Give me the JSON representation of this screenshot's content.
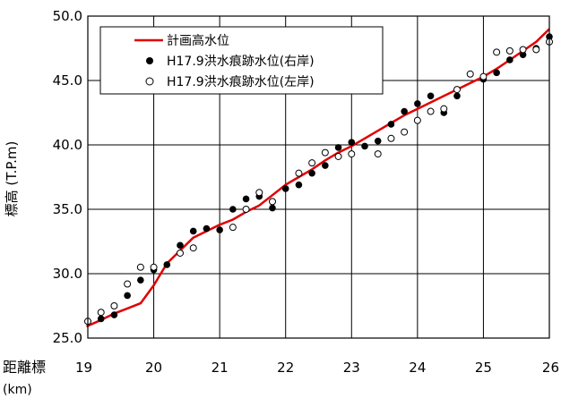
{
  "chart_data": {
    "type": "line",
    "xlabel": "距離標",
    "xunit": "(km)",
    "ylabel": "標高 (T.P.m)",
    "xlim": [
      19,
      26
    ],
    "ylim": [
      25.0,
      50.0
    ],
    "xticks": [
      "19",
      "20",
      "21",
      "22",
      "23",
      "24",
      "25",
      "26"
    ],
    "yticks": [
      "25.0",
      "30.0",
      "35.0",
      "40.0",
      "45.0",
      "50.0"
    ],
    "grid": true,
    "legend_position": "top-left",
    "colors": {
      "plan": "#e00000",
      "right": "#000000",
      "left": "#000000"
    },
    "series": [
      {
        "name": "計画高水位",
        "style": "line",
        "x": [
          18.98,
          19.2,
          19.4,
          19.6,
          19.8,
          20.0,
          20.2,
          20.4,
          20.6,
          20.8,
          21.0,
          21.2,
          21.4,
          21.6,
          21.8,
          22.0,
          22.2,
          22.4,
          22.6,
          22.8,
          23.0,
          23.2,
          23.4,
          23.6,
          23.8,
          24.0,
          24.2,
          24.4,
          24.6,
          24.8,
          25.0,
          25.2,
          25.4,
          25.6,
          25.8,
          26.0
        ],
        "y": [
          25.9,
          26.4,
          26.9,
          27.3,
          27.7,
          29.1,
          30.8,
          31.8,
          32.8,
          33.3,
          33.8,
          34.2,
          34.8,
          35.3,
          36.1,
          36.9,
          37.5,
          38.1,
          38.8,
          39.4,
          39.9,
          40.5,
          41.1,
          41.7,
          42.3,
          42.8,
          43.3,
          43.8,
          44.3,
          44.8,
          45.3,
          45.9,
          46.6,
          47.3,
          48.0,
          49.0
        ]
      },
      {
        "name": "H17.9洪水痕跡水位(右岸)",
        "style": "filled-marker",
        "x": [
          19.2,
          19.4,
          19.6,
          19.8,
          20.0,
          20.2,
          20.4,
          20.6,
          20.8,
          21.0,
          21.2,
          21.4,
          21.6,
          21.8,
          22.0,
          22.2,
          22.4,
          22.6,
          22.8,
          23.0,
          23.2,
          23.4,
          23.6,
          23.8,
          24.0,
          24.2,
          24.4,
          24.6,
          25.0,
          25.2,
          25.4,
          25.6,
          25.8,
          26.0
        ],
        "y": [
          26.5,
          26.8,
          28.3,
          29.5,
          30.3,
          30.7,
          32.2,
          33.3,
          33.5,
          33.4,
          35.0,
          35.8,
          36.0,
          35.1,
          36.6,
          36.9,
          37.8,
          38.4,
          39.8,
          40.2,
          39.9,
          40.3,
          41.6,
          42.6,
          43.2,
          43.8,
          42.5,
          43.8,
          45.1,
          45.6,
          46.6,
          47.0,
          47.5,
          48.4
        ]
      },
      {
        "name": "H17.9洪水痕跡水位(左岸)",
        "style": "open-marker",
        "x": [
          19.0,
          19.2,
          19.4,
          19.6,
          19.8,
          20.0,
          20.4,
          20.6,
          21.2,
          21.4,
          21.6,
          21.8,
          22.2,
          22.4,
          22.6,
          22.8,
          23.0,
          23.4,
          23.6,
          23.8,
          24.0,
          24.2,
          24.4,
          24.6,
          24.8,
          25.0,
          25.2,
          25.4,
          25.6,
          25.8,
          26.0
        ],
        "y": [
          26.3,
          27.0,
          27.5,
          29.2,
          30.5,
          30.5,
          31.6,
          32.0,
          33.6,
          35.0,
          36.3,
          35.6,
          37.8,
          38.6,
          39.4,
          39.1,
          39.3,
          39.3,
          40.5,
          41.0,
          41.9,
          42.6,
          42.8,
          44.3,
          45.5,
          45.3,
          47.2,
          47.3,
          47.4,
          47.4,
          48.0
        ]
      }
    ]
  }
}
